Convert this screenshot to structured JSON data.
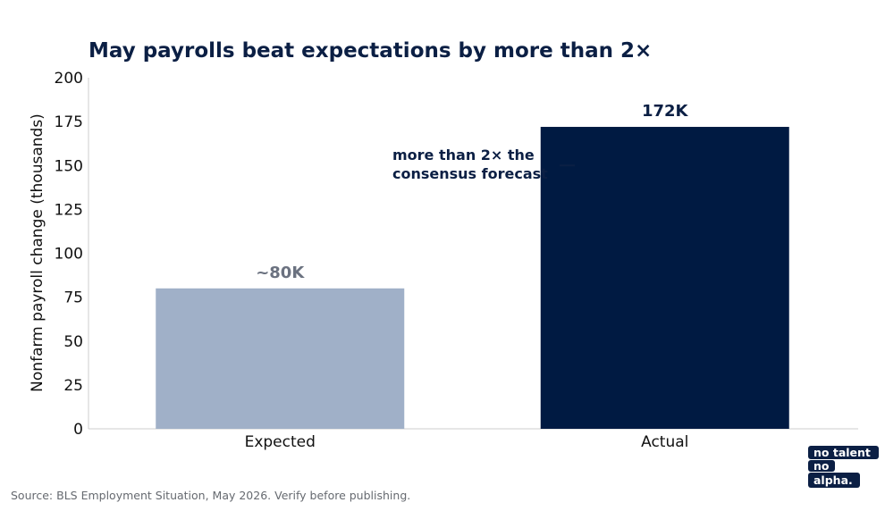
{
  "title": "May payrolls beat expectations by more than 2×",
  "source": "Source: BLS Employment Situation, May 2026. Verify before publishing.",
  "annotation": {
    "lines": [
      "more than 2× the",
      "consensus forecast"
    ],
    "target_value": 150
  },
  "logo": {
    "lines": [
      "no talent",
      "no",
      "alpha."
    ]
  },
  "colors": {
    "expected": "#a0b0c8",
    "actual": "#001a42",
    "title": "#0b1f44",
    "label_muted": "#6b7280",
    "axis": "#cccccc"
  },
  "chart_data": {
    "type": "bar",
    "title": "May payrolls beat expectations by more than 2×",
    "xlabel": "",
    "ylabel": "Nonfarm payroll change (thousands)",
    "categories": [
      "Expected",
      "Actual"
    ],
    "values": [
      80,
      172
    ],
    "data_labels": [
      "~80K",
      "172K"
    ],
    "ylim": [
      0,
      200
    ],
    "yticks": [
      0,
      25,
      50,
      75,
      100,
      125,
      150,
      175,
      200
    ],
    "grid": false,
    "legend": "none"
  }
}
